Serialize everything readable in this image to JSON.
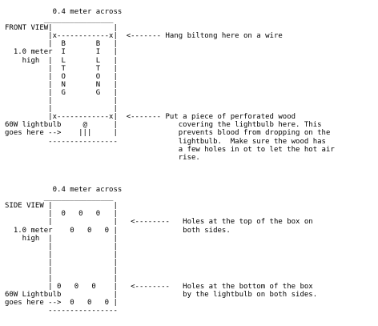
{
  "lines": [
    "           0.4 meter across",
    "         ________________",
    "FRONT VIEW|              |",
    "          |x------------x|  <------- Hang biltong here on a wire",
    "          |  B       B   |",
    "  1.0 meter  I       I   |",
    "    high  |  L       L   |",
    "          |  T       T   |",
    "          |  O       O   |",
    "          |  N       N   |",
    "          |  G       G   |",
    "          |              |",
    "          |              |",
    "          |x------------x|  <------- Put a piece of perforated wood",
    "60W lightbulb     @      |              covering the lightbulb here. This",
    "goes here -->    |||     |              prevents blood from dropping on the",
    "          ----------------              lightbulb.  Make sure the wood has",
    "                                        a few holes in ot to let the hot air",
    "                                        rise.",
    "",
    "",
    "",
    "           0.4 meter across",
    "         ________________",
    "SIDE VIEW |              |",
    "          |  0   0   0   |",
    "          |              |   <--------   Holes at the top of the box on",
    "  1.0 meter    0   0   0 |               both sides.",
    "    high  |              |",
    "          |              |",
    "          |              |",
    "          |              |",
    "          |              |",
    "          |              |",
    "          | 0   0   0    |   <--------   Holes at the bottom of the box",
    "60W Lightbulb            |               by the lightbulb on both sides.",
    "goes here -->  0   0   0 |",
    "          ----------------"
  ]
}
